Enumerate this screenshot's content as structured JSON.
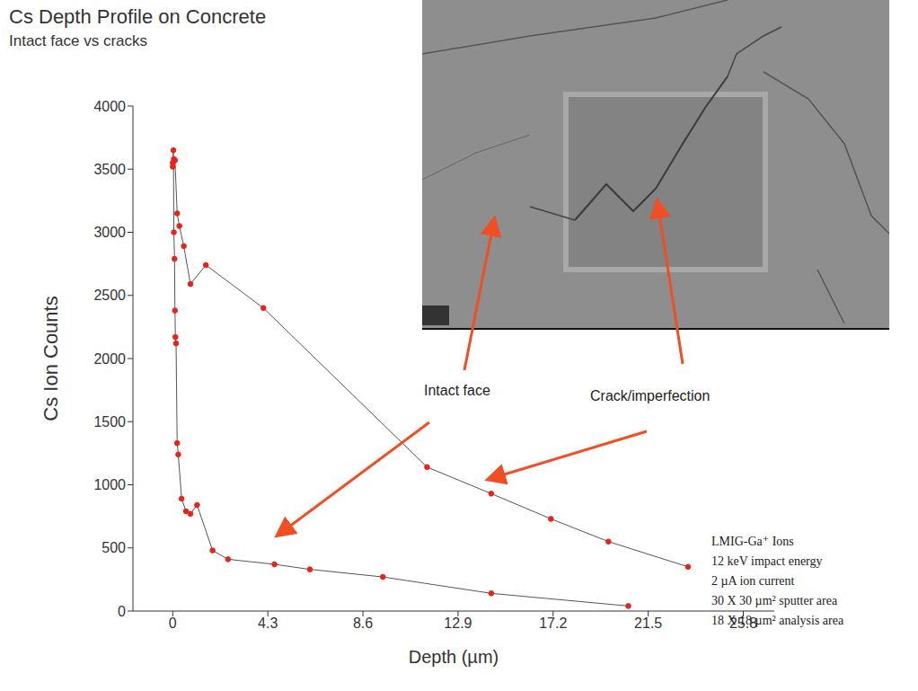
{
  "chart_data": {
    "type": "line",
    "title": "Cs Depth Profile on Concrete",
    "subtitle": "Intact face vs cracks",
    "x_label": "Depth (µm)",
    "y_label": "Cs Ion Counts",
    "xlim": [
      -1.8,
      27.2
    ],
    "xticks": [
      0,
      4.3,
      8.6,
      12.9,
      17.2,
      21.5,
      25.8
    ],
    "ylim": [
      0,
      4000
    ],
    "yticks": [
      0,
      500,
      1000,
      1500,
      2000,
      2500,
      3000,
      3500,
      4000
    ],
    "grid": false,
    "series": [
      {
        "name": "Intact face",
        "color": "#e8231c",
        "marker": "circle",
        "line_style": "solid",
        "x": [
          0,
          0.03,
          0.05,
          0.08,
          0.1,
          0.12,
          0.15,
          0.2,
          0.25,
          0.4,
          0.6,
          0.8,
          1.1,
          1.8,
          2.5,
          4.6,
          6.2,
          9.5,
          14.4,
          20.6
        ],
        "values": [
          3550,
          3650,
          3000,
          2790,
          2380,
          2170,
          2120,
          1330,
          1240,
          890,
          790,
          770,
          840,
          480,
          410,
          370,
          330,
          270,
          140,
          40
        ]
      },
      {
        "name": "Crack/imperfection",
        "color": "#e8231c",
        "marker": "circle",
        "line_style": "solid",
        "x": [
          0,
          0.05,
          0.1,
          0.2,
          0.3,
          0.5,
          0.8,
          1.5,
          4.1,
          11.5,
          14.4,
          17.1,
          19.7,
          23.3
        ],
        "values": [
          3520,
          3580,
          3570,
          3150,
          3050,
          2890,
          2590,
          2740,
          2400,
          1140,
          930,
          730,
          550,
          350
        ]
      }
    ],
    "annotations": [
      "LMIG-Ga⁺ Ions",
      "12 keV impact energy",
      "2 µA ion current",
      "30 X 30 µm² sputter area",
      "18 X 18 µm² analysis area"
    ]
  }
}
